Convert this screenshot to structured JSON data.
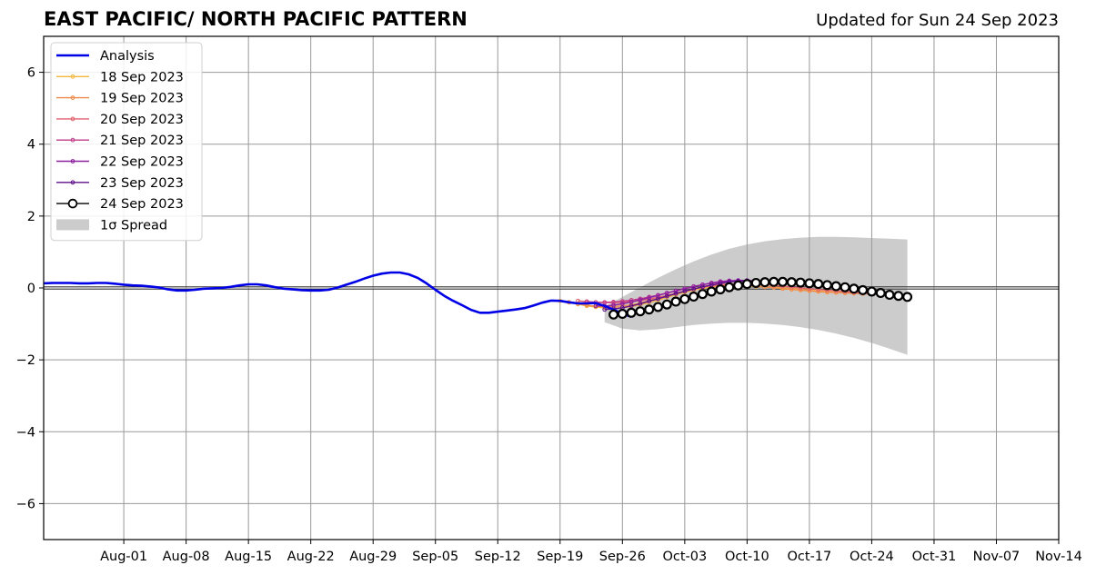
{
  "header": {
    "title": "EAST PACIFIC/ NORTH PACIFIC PATTERN",
    "updated": "Updated for Sun 24 Sep 2023"
  },
  "colors": {
    "analysis": "#0000e6",
    "spread": "#cccccc",
    "grid": "#999999",
    "verified": "#000000"
  },
  "chart_data": {
    "type": "line",
    "title": "EAST PACIFIC/ NORTH PACIFIC PATTERN",
    "subtitle": "Updated for Sun 24 Sep 2023",
    "x_type": "date",
    "xlim": [
      "2023-07-23",
      "2023-11-14"
    ],
    "ylim": [
      -7,
      7
    ],
    "x_ticks": [
      {
        "date": "2023-08-01",
        "label": "Aug-01"
      },
      {
        "date": "2023-08-08",
        "label": "Aug-08"
      },
      {
        "date": "2023-08-15",
        "label": "Aug-15"
      },
      {
        "date": "2023-08-22",
        "label": "Aug-22"
      },
      {
        "date": "2023-08-29",
        "label": "Aug-29"
      },
      {
        "date": "2023-09-05",
        "label": "Sep-05"
      },
      {
        "date": "2023-09-12",
        "label": "Sep-12"
      },
      {
        "date": "2023-09-19",
        "label": "Sep-19"
      },
      {
        "date": "2023-09-26",
        "label": "Sep-26"
      },
      {
        "date": "2023-10-03",
        "label": "Oct-03"
      },
      {
        "date": "2023-10-10",
        "label": "Oct-10"
      },
      {
        "date": "2023-10-17",
        "label": "Oct-17"
      },
      {
        "date": "2023-10-24",
        "label": "Oct-24"
      },
      {
        "date": "2023-10-31",
        "label": "Oct-31"
      },
      {
        "date": "2023-11-07",
        "label": "Nov-07"
      },
      {
        "date": "2023-11-14",
        "label": "Nov-14"
      }
    ],
    "y_ticks": [
      {
        "value": 6,
        "label": "6"
      },
      {
        "value": 4,
        "label": "4"
      },
      {
        "value": 2,
        "label": "2"
      },
      {
        "value": 0,
        "label": "0"
      },
      {
        "value": -2,
        "label": "−2"
      },
      {
        "value": -4,
        "label": "−4"
      },
      {
        "value": -6,
        "label": "−6"
      }
    ],
    "grid": true,
    "zero_line": true,
    "legend": {
      "position": "top-left",
      "entries": [
        {
          "label": "Analysis",
          "kind": "analysis"
        },
        {
          "label": "18 Sep 2023",
          "kind": "forecast",
          "color": "#f5b642"
        },
        {
          "label": "19 Sep 2023",
          "kind": "forecast",
          "color": "#f08a4b"
        },
        {
          "label": "20 Sep 2023",
          "kind": "forecast",
          "color": "#e0606e"
        },
        {
          "label": "21 Sep 2023",
          "kind": "forecast",
          "color": "#c13d8a"
        },
        {
          "label": "22 Sep 2023",
          "kind": "forecast",
          "color": "#8e1fa0"
        },
        {
          "label": "23 Sep 2023",
          "kind": "forecast",
          "color": "#5b0f8a"
        },
        {
          "label": "24 Sep 2023",
          "kind": "verified"
        },
        {
          "label": "1σ Spread",
          "kind": "spread"
        }
      ]
    },
    "analysis": {
      "name": "Analysis",
      "start": "2023-07-23",
      "values": [
        0.13,
        0.14,
        0.14,
        0.14,
        0.13,
        0.13,
        0.14,
        0.14,
        0.12,
        0.09,
        0.07,
        0.06,
        0.04,
        0.01,
        -0.04,
        -0.07,
        -0.07,
        -0.05,
        -0.02,
        -0.01,
        0.0,
        0.03,
        0.07,
        0.1,
        0.1,
        0.07,
        0.02,
        -0.02,
        -0.04,
        -0.06,
        -0.07,
        -0.07,
        -0.05,
        0.01,
        0.09,
        0.17,
        0.26,
        0.34,
        0.4,
        0.43,
        0.43,
        0.38,
        0.28,
        0.13,
        -0.05,
        -0.22,
        -0.36,
        -0.48,
        -0.61,
        -0.69,
        -0.69,
        -0.66,
        -0.63,
        -0.6,
        -0.56,
        -0.49,
        -0.41,
        -0.35,
        -0.36,
        -0.4,
        -0.43,
        -0.43,
        -0.42,
        -0.5,
        -0.6,
        -0.72,
        -0.8
      ]
    },
    "forecasts": [
      {
        "name": "18 Sep 2023",
        "color": "#f5b642",
        "start": "2023-09-19",
        "values": [
          -0.36,
          -0.4,
          -0.45,
          -0.5,
          -0.53,
          -0.55,
          -0.56,
          -0.55,
          -0.52,
          -0.47,
          -0.41,
          -0.34,
          -0.26,
          -0.19,
          -0.12,
          -0.06,
          -0.01,
          0.03,
          0.05,
          0.06,
          0.06,
          0.05,
          0.04,
          0.03,
          0.02,
          0.0,
          -0.02,
          -0.04,
          -0.06,
          -0.08,
          -0.1,
          -0.12,
          -0.13,
          -0.14,
          -0.15,
          -0.16
        ]
      },
      {
        "name": "19 Sep 2023",
        "color": "#f08a4b",
        "start": "2023-09-20",
        "values": [
          -0.4,
          -0.44,
          -0.48,
          -0.51,
          -0.52,
          -0.52,
          -0.5,
          -0.47,
          -0.42,
          -0.36,
          -0.29,
          -0.22,
          -0.15,
          -0.09,
          -0.03,
          0.02,
          0.05,
          0.07,
          0.08,
          0.08,
          0.07,
          0.05,
          0.03,
          0.01,
          -0.02,
          -0.04,
          -0.06,
          -0.08,
          -0.1,
          -0.12,
          -0.13,
          -0.14,
          -0.15,
          -0.16,
          -0.17
        ]
      },
      {
        "name": "20 Sep 2023",
        "color": "#e0606e",
        "start": "2023-09-21",
        "values": [
          -0.36,
          -0.38,
          -0.4,
          -0.41,
          -0.41,
          -0.4,
          -0.38,
          -0.35,
          -0.31,
          -0.26,
          -0.21,
          -0.15,
          -0.09,
          -0.03,
          0.02,
          0.06,
          0.09,
          0.11,
          0.12,
          0.12,
          0.11,
          0.09,
          0.07,
          0.05,
          0.02,
          0.0,
          -0.02,
          -0.04,
          -0.06,
          -0.08,
          -0.1,
          -0.12,
          -0.14,
          -0.16
        ]
      },
      {
        "name": "21 Sep 2023",
        "color": "#c13d8a",
        "start": "2023-09-22",
        "values": [
          -0.38,
          -0.4,
          -0.4,
          -0.39,
          -0.37,
          -0.34,
          -0.3,
          -0.25,
          -0.2,
          -0.14,
          -0.08,
          -0.02,
          0.04,
          0.09,
          0.13,
          0.16,
          0.18,
          0.19,
          0.19,
          0.18
        ]
      },
      {
        "name": "22 Sep 2023",
        "color": "#8e1fa0",
        "start": "2023-09-23",
        "values": [
          -0.5,
          -0.5,
          -0.48,
          -0.44,
          -0.39,
          -0.33,
          -0.27,
          -0.21,
          -0.14,
          -0.08,
          -0.02,
          0.04,
          0.09,
          0.14,
          0.18,
          0.2,
          0.21,
          0.21,
          0.2
        ]
      },
      {
        "name": "23 Sep 2023",
        "color": "#5b0f8a",
        "start": "2023-09-24",
        "values": [
          -0.6,
          -0.58,
          -0.55,
          -0.5,
          -0.44,
          -0.37,
          -0.3,
          -0.23,
          -0.16,
          -0.09,
          -0.03,
          0.03,
          0.08,
          0.13,
          0.17,
          0.19,
          0.2
        ]
      }
    ],
    "verified_forecast": {
      "name": "24 Sep 2023",
      "start": "2023-09-25",
      "values": [
        -0.74,
        -0.72,
        -0.69,
        -0.65,
        -0.6,
        -0.53,
        -0.46,
        -0.38,
        -0.31,
        -0.24,
        -0.17,
        -0.1,
        -0.04,
        0.02,
        0.07,
        0.11,
        0.14,
        0.16,
        0.17,
        0.17,
        0.16,
        0.15,
        0.13,
        0.11,
        0.08,
        0.05,
        0.02,
        -0.02,
        -0.06,
        -0.1,
        -0.14,
        -0.19,
        -0.22,
        -0.25
      ]
    },
    "spread": {
      "name": "1σ Spread",
      "x": [
        "2023-09-24",
        "2023-09-26",
        "2023-09-28",
        "2023-09-30",
        "2023-10-02",
        "2023-10-04",
        "2023-10-06",
        "2023-10-08",
        "2023-10-10",
        "2023-10-12",
        "2023-10-14",
        "2023-10-16",
        "2023-10-18",
        "2023-10-20",
        "2023-10-22",
        "2023-10-24",
        "2023-10-26",
        "2023-10-28"
      ],
      "upper": [
        -0.52,
        -0.25,
        0.02,
        0.28,
        0.52,
        0.74,
        0.93,
        1.09,
        1.21,
        1.3,
        1.36,
        1.4,
        1.42,
        1.42,
        1.41,
        1.39,
        1.37,
        1.35
      ],
      "lower": [
        -0.95,
        -1.13,
        -1.18,
        -1.15,
        -1.09,
        -1.03,
        -0.99,
        -0.97,
        -0.97,
        -0.99,
        -1.03,
        -1.09,
        -1.17,
        -1.27,
        -1.39,
        -1.53,
        -1.69,
        -1.86
      ]
    }
  }
}
